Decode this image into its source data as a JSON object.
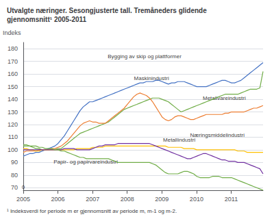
{
  "chart_data": {
    "type": "line",
    "title": "Utvalgte næringer. Sesongjusterte tall. Tremåneders glidende\ngjennomsnitt¹ 2005-2011",
    "ylabel": "Indeks",
    "footnote": "¹ Indeksverdi for periode m er gjennomsnitt av periode m, m-1 og m-2.",
    "xlim": [
      2005.0,
      2011.92
    ],
    "xticks": [
      2005,
      2006,
      2007,
      2008,
      2009,
      2010,
      2011
    ],
    "ylim": [
      68,
      185
    ],
    "yticks": [
      70,
      80,
      90,
      100,
      110,
      120,
      130,
      140,
      150,
      160,
      170,
      180
    ],
    "grid": true,
    "x": [
      2005.0,
      2005.0911,
      2005.1821,
      2005.2732,
      2005.3642,
      2005.4553,
      2005.5463,
      2005.6374,
      2005.7284,
      2005.8195,
      2005.9105,
      2006.0016,
      2006.0926,
      2006.1837,
      2006.2747,
      2006.3658,
      2006.4568,
      2006.5479,
      2006.6389,
      2006.73,
      2006.8211,
      2006.9121,
      2007.0032,
      2007.0942,
      2007.1853,
      2007.2763,
      2007.3674,
      2007.4584,
      2007.5495,
      2007.6405,
      2007.7316,
      2007.8226,
      2007.9137,
      2008.0047,
      2008.0958,
      2008.1868,
      2008.2779,
      2008.3689,
      2008.46,
      2008.5511,
      2008.6421,
      2008.7332,
      2008.8242,
      2008.9153,
      2009.0063,
      2009.0974,
      2009.1884,
      2009.2795,
      2009.3705,
      2009.4616,
      2009.5526,
      2009.6437,
      2009.7347,
      2009.8258,
      2009.9168,
      2010.0079,
      2010.0989,
      2010.19,
      2010.2811,
      2010.3721,
      2010.4632,
      2010.5542,
      2010.6453,
      2010.7363,
      2010.8274,
      2010.9184,
      2011.0095,
      2011.1005,
      2011.1916,
      2011.2826,
      2011.3737,
      2011.4647,
      2011.5558,
      2011.6468,
      2011.7379,
      2011.8289,
      2011.92
    ],
    "series": [
      {
        "name": "Bygging av skip og plattformer",
        "color": "#4472C4",
        "values": [
          95,
          96,
          97,
          97,
          98,
          98,
          99,
          100,
          101,
          102,
          103,
          105,
          108,
          111,
          115,
          119,
          123,
          127,
          131,
          134,
          136,
          138,
          138,
          139,
          140,
          141,
          142,
          143,
          144,
          145,
          146,
          147,
          148,
          149,
          150,
          151,
          152,
          153,
          153,
          154,
          154,
          154,
          155,
          155,
          154,
          153,
          152,
          153,
          153,
          154,
          154,
          154,
          153,
          152,
          151,
          150,
          150,
          150,
          150,
          151,
          152,
          153,
          154,
          155,
          155,
          154,
          153,
          153,
          154,
          155,
          157,
          159,
          161,
          163,
          165,
          167,
          169
        ]
      },
      {
        "name": "Maskinindustri",
        "color": "#70AD47",
        "values": [
          103,
          103,
          103,
          102,
          101,
          101,
          100,
          100,
          100,
          100,
          100,
          101,
          101,
          103,
          105,
          107,
          109,
          111,
          113,
          114,
          115,
          116,
          117,
          118,
          119,
          120,
          121,
          122,
          124,
          126,
          128,
          130,
          132,
          133,
          134,
          135,
          136,
          137,
          138,
          139,
          140,
          141,
          141,
          141,
          140,
          139,
          138,
          136,
          134,
          132,
          130,
          131,
          132,
          133,
          134,
          135,
          136,
          137,
          138,
          139,
          140,
          141,
          142,
          143,
          144,
          144,
          144,
          144,
          144,
          145,
          146,
          147,
          148,
          148,
          148,
          149,
          162
        ]
      },
      {
        "name": "Metallvareindustri",
        "color": "#ED7D31",
        "values": [
          98,
          99,
          99,
          99,
          99,
          100,
          100,
          100,
          100,
          101,
          101,
          102,
          103,
          105,
          107,
          110,
          113,
          116,
          119,
          121,
          122,
          123,
          122,
          122,
          121,
          121,
          121,
          123,
          125,
          127,
          129,
          131,
          133,
          136,
          139,
          142,
          144,
          145,
          144,
          143,
          141,
          138,
          134,
          130,
          126,
          124,
          123,
          124,
          126,
          127,
          127,
          126,
          125,
          124,
          124,
          125,
          126,
          127,
          128,
          128,
          128,
          128,
          128,
          128,
          129,
          129,
          130,
          130,
          130,
          130,
          130,
          131,
          132,
          133,
          133,
          134,
          135
        ]
      },
      {
        "name": "Næringsmiddelindustri",
        "color": "#FFC000",
        "values": [
          101,
          101,
          100,
          100,
          99,
          99,
          100,
          100,
          100,
          100,
          100,
          100,
          100,
          100,
          100,
          100,
          100,
          101,
          101,
          101,
          101,
          101,
          102,
          102,
          102,
          102,
          103,
          103,
          103,
          103,
          103,
          103,
          103,
          103,
          103,
          103,
          103,
          103,
          103,
          103,
          103,
          103,
          103,
          103,
          103,
          103,
          102,
          102,
          102,
          102,
          102,
          101,
          101,
          101,
          101,
          100,
          100,
          100,
          100,
          100,
          100,
          100,
          100,
          100,
          100,
          100,
          100,
          100,
          99,
          99,
          99,
          98,
          98,
          98,
          98,
          98,
          98
        ]
      },
      {
        "name": "Metallindustri",
        "color": "#7030A0",
        "values": [
          100,
          100,
          100,
          100,
          100,
          100,
          100,
          100,
          100,
          100,
          100,
          100,
          100,
          101,
          101,
          101,
          101,
          100,
          100,
          100,
          100,
          100,
          101,
          102,
          103,
          103,
          104,
          104,
          104,
          104,
          105,
          105,
          105,
          105,
          105,
          105,
          105,
          105,
          105,
          105,
          105,
          104,
          103,
          102,
          101,
          100,
          99,
          98,
          97,
          96,
          95,
          94,
          93,
          93,
          94,
          95,
          96,
          97,
          97,
          96,
          95,
          94,
          93,
          92,
          92,
          91,
          91,
          91,
          90,
          90,
          90,
          89,
          88,
          87,
          86,
          85,
          81
        ]
      },
      {
        "name": "Papir- og papirvareindustri",
        "color": "#70AD47",
        "values": [
          104,
          104,
          103,
          103,
          103,
          102,
          102,
          101,
          101,
          101,
          100,
          100,
          99,
          99,
          98,
          97,
          96,
          95,
          94,
          94,
          93,
          93,
          93,
          93,
          93,
          93,
          93,
          93,
          92,
          91,
          90,
          90,
          90,
          90,
          90,
          90,
          90,
          90,
          90,
          90,
          90,
          89,
          88,
          86,
          84,
          82,
          81,
          81,
          81,
          81,
          82,
          83,
          83,
          82,
          81,
          79,
          78,
          78,
          78,
          78,
          79,
          79,
          79,
          78,
          78,
          78,
          78,
          77,
          76,
          75,
          74,
          73,
          72,
          71,
          70,
          69,
          68
        ]
      }
    ],
    "annotations": [
      {
        "text": "Bygging av skip og plattformer",
        "x": 2008.5,
        "y": 171
      },
      {
        "text": "Maskinindustri",
        "x": 2008.7,
        "y": 154
      },
      {
        "text": "Metallvareindustri",
        "x": 2010.8,
        "y": 138
      },
      {
        "text": "Næringsmiddelindustri",
        "x": 2010.6,
        "y": 109
      },
      {
        "text": "Metallindustri",
        "x": 2009.5,
        "y": 105
      },
      {
        "text": "Papir- og papirvareindustri",
        "x": 2006.8,
        "y": 88
      },
      {
        "text": "0",
        "x": 2005.0,
        "y": 68
      }
    ]
  }
}
